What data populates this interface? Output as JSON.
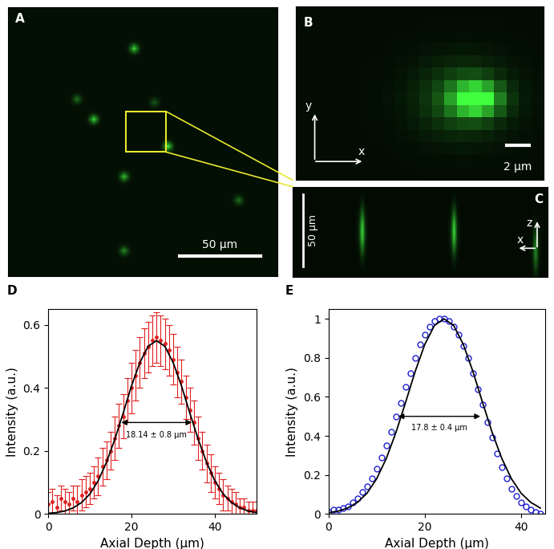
{
  "chart_data": [
    {
      "type": "scatter",
      "title": "D",
      "x_label": "Axial Depth (μm)",
      "y_label": "Intensity (a.u.)",
      "xlim": [
        0,
        50
      ],
      "xticks": [
        0,
        20,
        40
      ],
      "ylim": [
        0,
        0.65
      ],
      "yticks": [
        0,
        0.2,
        0.4,
        0.6
      ],
      "series": [
        {
          "type": "scatter",
          "color": "#e02020",
          "marker": "dot",
          "x": [
            0,
            1,
            2,
            3,
            4,
            5,
            6,
            7,
            8,
            9,
            10,
            11,
            12,
            13,
            14,
            15,
            16,
            17,
            18,
            19,
            20,
            21,
            22,
            23,
            24,
            25,
            26,
            27,
            28,
            29,
            30,
            31,
            32,
            33,
            34,
            35,
            36,
            37,
            38,
            39,
            40,
            41,
            42,
            43,
            44,
            45,
            46,
            47,
            48,
            49,
            50
          ],
          "values": [
            0.03,
            0.04,
            0.02,
            0.05,
            0.04,
            0.03,
            0.05,
            0.04,
            0.06,
            0.07,
            0.08,
            0.1,
            0.12,
            0.15,
            0.17,
            0.2,
            0.24,
            0.28,
            0.31,
            0.36,
            0.4,
            0.44,
            0.48,
            0.51,
            0.53,
            0.55,
            0.56,
            0.55,
            0.54,
            0.52,
            0.49,
            0.45,
            0.42,
            0.37,
            0.33,
            0.29,
            0.24,
            0.2,
            0.16,
            0.13,
            0.1,
            0.08,
            0.06,
            0.05,
            0.04,
            0.03,
            0.02,
            0.02,
            0.01,
            0.01,
            0.01
          ],
          "errors": [
            0.04,
            0.04,
            0.04,
            0.04,
            0.04,
            0.04,
            0.04,
            0.05,
            0.05,
            0.05,
            0.05,
            0.05,
            0.06,
            0.06,
            0.06,
            0.06,
            0.07,
            0.07,
            0.07,
            0.07,
            0.08,
            0.08,
            0.08,
            0.08,
            0.08,
            0.08,
            0.08,
            0.08,
            0.08,
            0.08,
            0.08,
            0.08,
            0.07,
            0.07,
            0.07,
            0.07,
            0.07,
            0.06,
            0.06,
            0.06,
            0.05,
            0.05,
            0.05,
            0.04,
            0.04,
            0.04,
            0.03,
            0.03,
            0.03,
            0.03,
            0.03
          ]
        },
        {
          "type": "line",
          "color": "#000000",
          "line_style": "solid",
          "x": [
            0,
            2,
            4,
            6,
            8,
            10,
            12,
            14,
            16,
            18,
            20,
            22,
            24,
            26,
            28,
            30,
            32,
            34,
            36,
            38,
            40,
            42,
            44,
            46,
            48,
            50
          ],
          "values": [
            0.002,
            0.004,
            0.009,
            0.019,
            0.036,
            0.063,
            0.105,
            0.164,
            0.237,
            0.32,
            0.406,
            0.48,
            0.532,
            0.55,
            0.532,
            0.48,
            0.406,
            0.32,
            0.237,
            0.164,
            0.105,
            0.063,
            0.036,
            0.019,
            0.009,
            0.004
          ]
        }
      ],
      "annotations": [
        {
          "text": "18.14 ± 0.8 μm",
          "x": [
            17,
            35
          ],
          "y": 0.29,
          "text_y": 0.25
        }
      ]
    },
    {
      "type": "scatter",
      "title": "E",
      "x_label": "Axial Depth (μm)",
      "y_label": "Intensity (a.u.)",
      "xlim": [
        0,
        45
      ],
      "xticks": [
        0,
        20,
        40
      ],
      "ylim": [
        0,
        1.05
      ],
      "yticks": [
        0,
        0.2,
        0.4,
        0.6,
        0.8,
        1
      ],
      "series": [
        {
          "type": "scatter",
          "color": "#1f1fd0",
          "marker": "open_circle",
          "x": [
            0,
            1,
            2,
            3,
            4,
            5,
            6,
            7,
            8,
            9,
            10,
            11,
            12,
            13,
            14,
            15,
            16,
            17,
            18,
            19,
            20,
            21,
            22,
            23,
            24,
            25,
            26,
            27,
            28,
            29,
            30,
            31,
            32,
            33,
            34,
            35,
            36,
            37,
            38,
            39,
            40,
            41,
            42,
            43,
            44
          ],
          "values": [
            0.01,
            0.02,
            0.02,
            0.03,
            0.04,
            0.06,
            0.08,
            0.11,
            0.14,
            0.18,
            0.23,
            0.29,
            0.35,
            0.42,
            0.5,
            0.57,
            0.65,
            0.72,
            0.8,
            0.87,
            0.92,
            0.96,
            0.99,
            1.0,
            1.0,
            0.99,
            0.96,
            0.92,
            0.86,
            0.8,
            0.72,
            0.64,
            0.56,
            0.47,
            0.39,
            0.31,
            0.24,
            0.18,
            0.13,
            0.09,
            0.06,
            0.04,
            0.02,
            0.01,
            0.0
          ]
        },
        {
          "type": "line",
          "color": "#000000",
          "line_style": "solid",
          "x": [
            0,
            2,
            4,
            6,
            8,
            10,
            12,
            14,
            16,
            18,
            20,
            22,
            24,
            26,
            28,
            30,
            32,
            34,
            36,
            38,
            40,
            42,
            44
          ],
          "values": [
            0.006,
            0.014,
            0.03,
            0.059,
            0.106,
            0.18,
            0.284,
            0.417,
            0.571,
            0.73,
            0.869,
            0.966,
            1.0,
            0.966,
            0.869,
            0.73,
            0.571,
            0.417,
            0.284,
            0.18,
            0.106,
            0.059,
            0.03
          ]
        }
      ],
      "annotations": [
        {
          "text": "17.8 ± 0.4 μm",
          "x": [
            14,
            32
          ],
          "y": 0.5,
          "text_y": 0.44
        }
      ]
    }
  ],
  "images": [
    {
      "panel": "A",
      "scale_bar": "50 μm"
    },
    {
      "panel": "B",
      "scale_bar": "2 μm",
      "axes": [
        "y",
        "x"
      ]
    },
    {
      "panel": "C",
      "scale_bar": "50 μm",
      "axes": [
        "z",
        "x"
      ]
    }
  ]
}
